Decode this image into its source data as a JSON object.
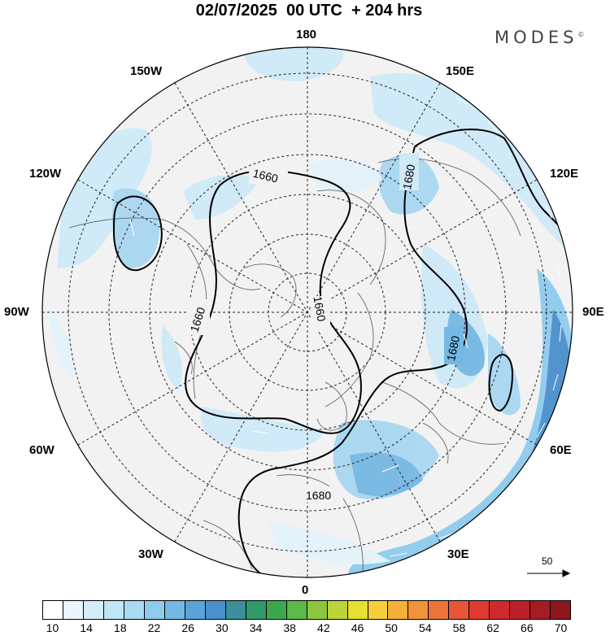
{
  "title": "02/07/2025  00 UTC  + 204 hrs",
  "brand": "MODES",
  "brand_mark": "©",
  "lon_labels": {
    "top": "180",
    "bottom": "0",
    "left": "90W",
    "right": "90E",
    "upper_left_1": "150W",
    "upper_left_2": "120W",
    "lower_left_1": "60W",
    "lower_left_2": "30W",
    "upper_right_1": "150E",
    "upper_right_2": "120E",
    "lower_right_1": "60E",
    "lower_right_2": "30E"
  },
  "contour_labels": [
    "1660",
    "1680",
    "1660",
    "1680",
    "1660",
    "1680"
  ],
  "reference_vector": "50",
  "colorbar": {
    "colors": [
      "#ffffff",
      "#eaf6fc",
      "#d4eef9",
      "#bfe5f6",
      "#a8daf2",
      "#8ecbec",
      "#74b8e3",
      "#5aa3d8",
      "#4a8fcc",
      "#3a8f9a",
      "#2f9a6a",
      "#3aa94e",
      "#5cb848",
      "#8cc640",
      "#bcd43a",
      "#e6df34",
      "#f6cf3a",
      "#f5b03a",
      "#f2923a",
      "#ee733a",
      "#e85637",
      "#df3b33",
      "#d02a2e",
      "#bc2129",
      "#a51b24",
      "#8c1520"
    ],
    "ticks": [
      "10",
      "14",
      "18",
      "22",
      "26",
      "30",
      "34",
      "38",
      "42",
      "46",
      "50",
      "54",
      "58",
      "62",
      "66",
      "70"
    ]
  }
}
